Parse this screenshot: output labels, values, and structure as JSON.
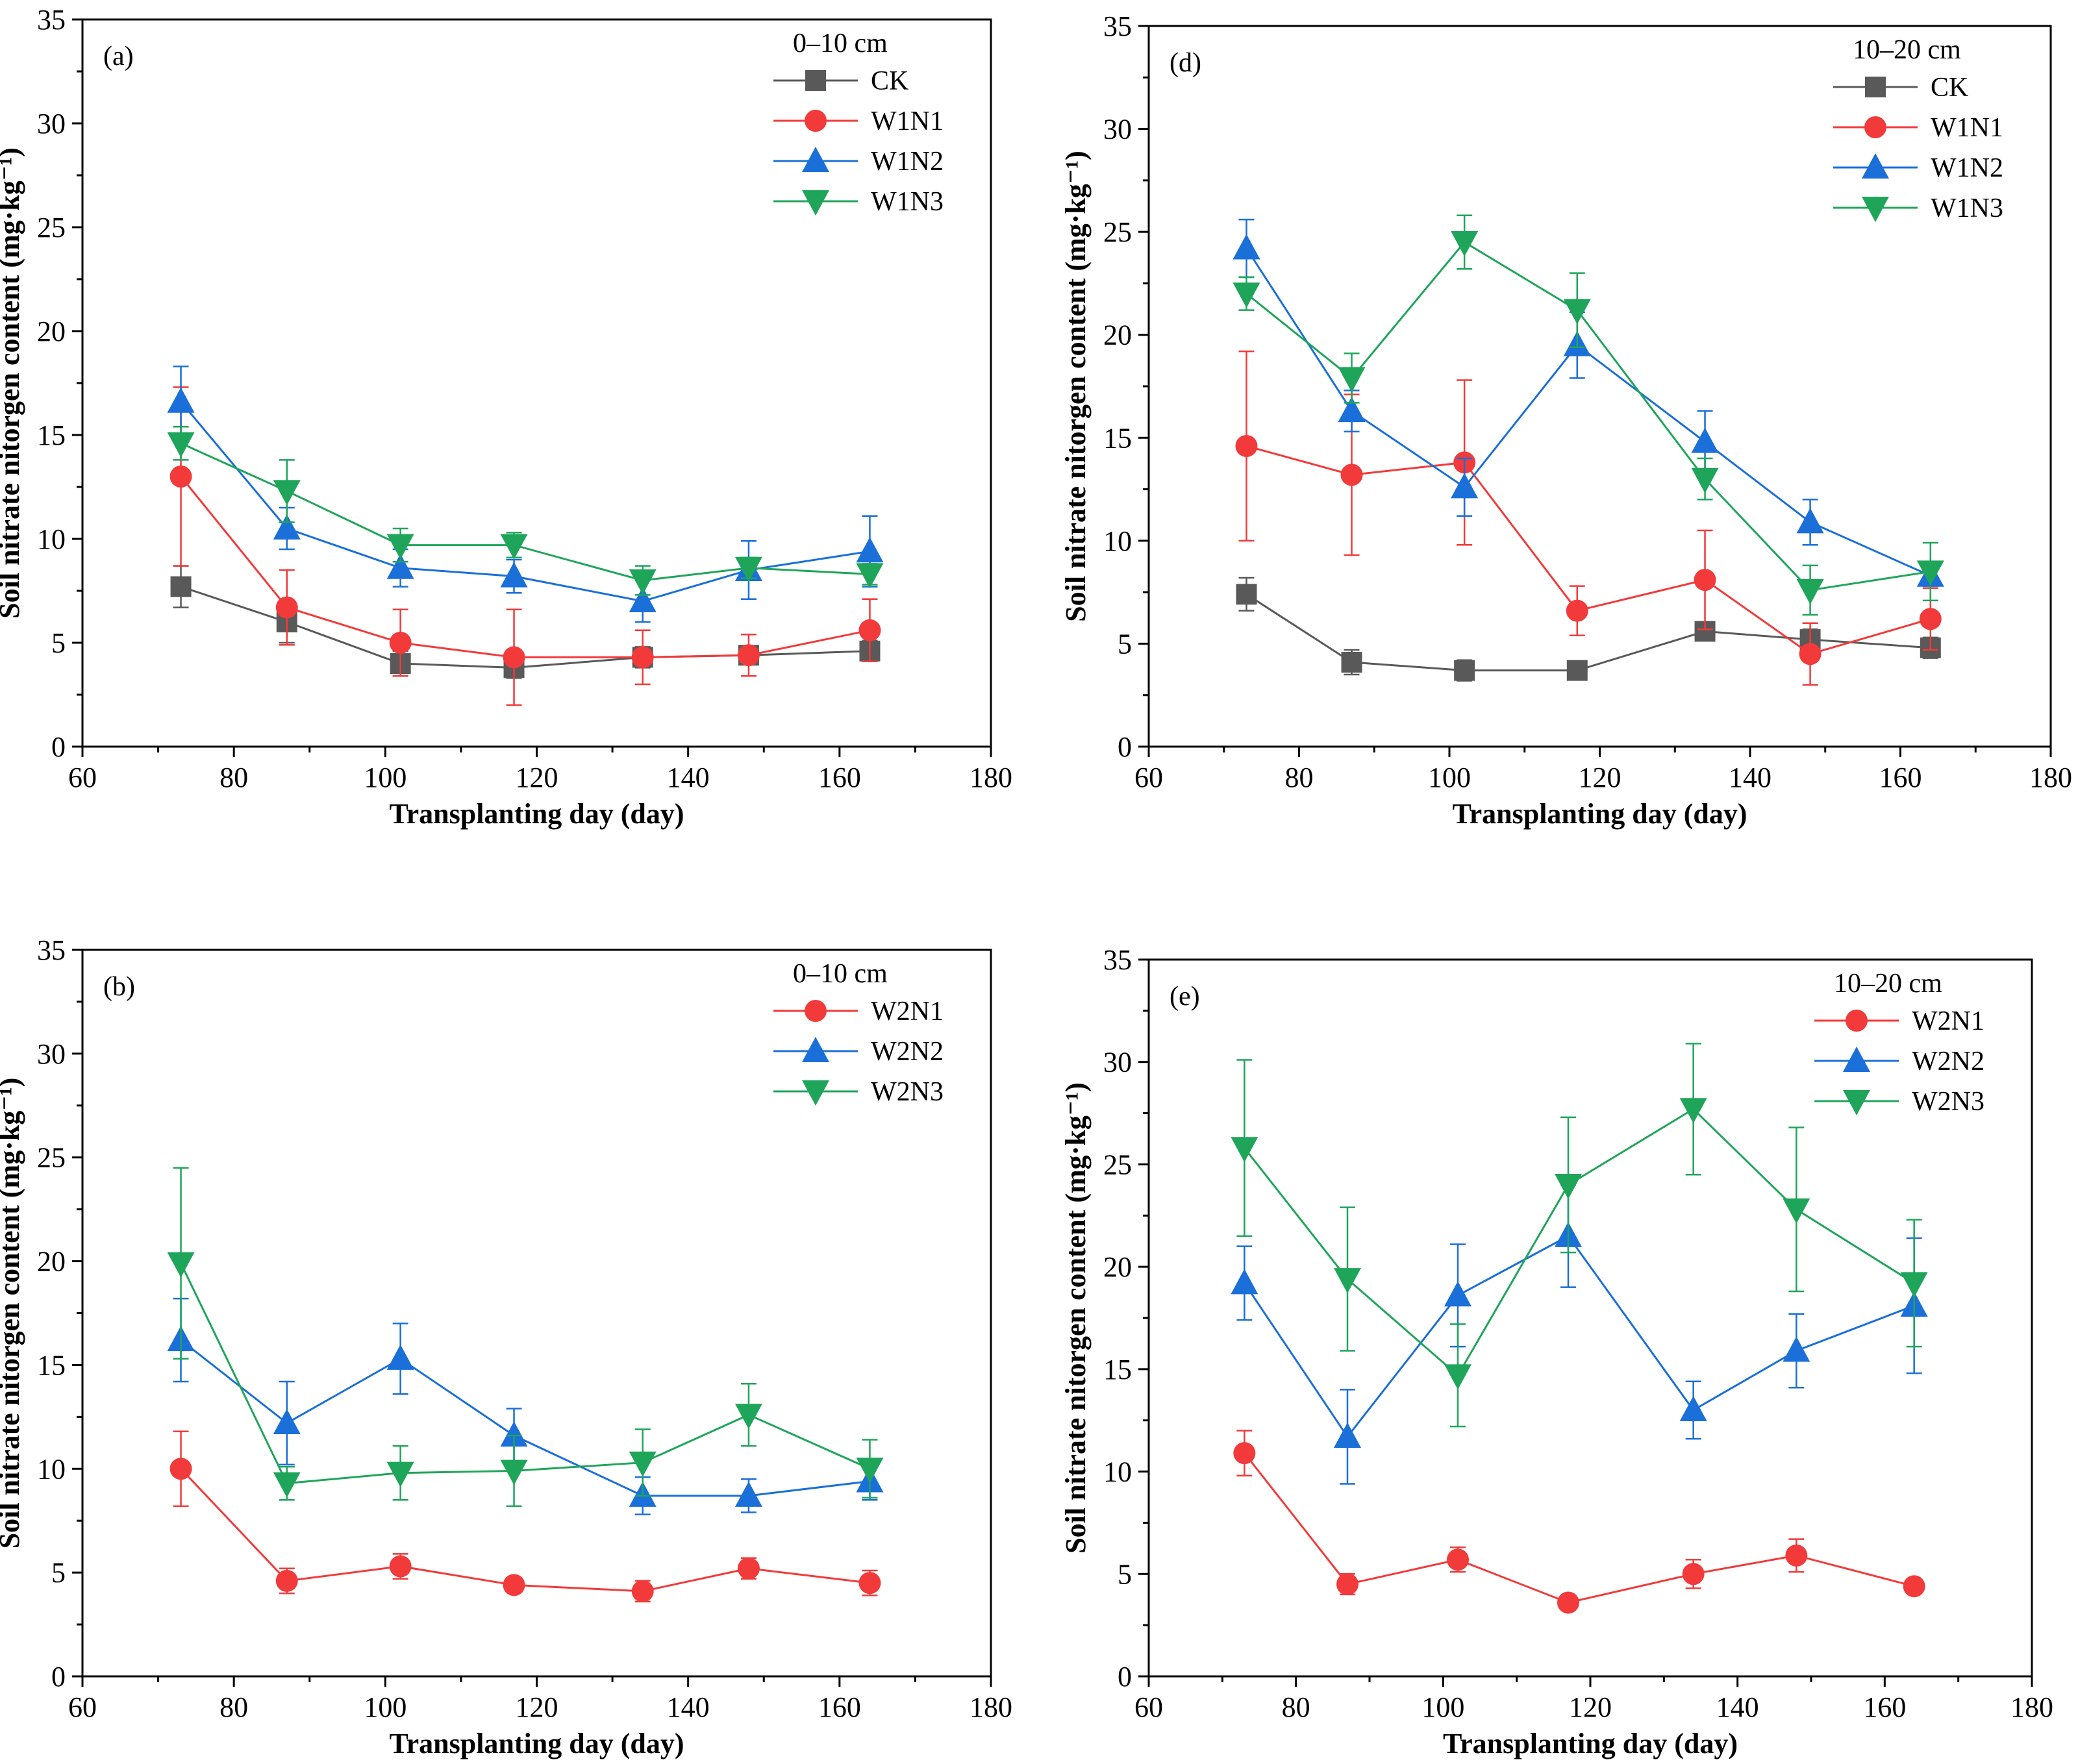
{
  "figure": {
    "colors": {
      "CK": "#595959",
      "N1": "#f23a3a",
      "N2": "#1a6fd9",
      "N3": "#1fa55a",
      "axis": "#000000"
    }
  },
  "chart_data": [
    {
      "id": "a",
      "type": "line",
      "panel_label": "(a)",
      "legend_title": "0–10 cm",
      "xlabel": "Transplanting day (day)",
      "ylabel": "Soil nitrate nitorgen content (mg·kg⁻¹)",
      "xlim": [
        60,
        180
      ],
      "ylim": [
        0,
        35
      ],
      "xticks": [
        60,
        80,
        100,
        120,
        140,
        160,
        180
      ],
      "yticks": [
        0,
        5,
        10,
        15,
        20,
        25,
        30,
        35
      ],
      "x": [
        73,
        87,
        102,
        117,
        134,
        148,
        164
      ],
      "series": [
        {
          "name": "CK",
          "marker": "square",
          "color_key": "CK",
          "values": [
            7.7,
            6.0,
            4.0,
            3.8,
            4.3,
            4.4,
            4.6
          ],
          "errors": [
            1.0,
            1.0,
            0.6,
            0.5,
            0.5,
            0.4,
            0.5
          ]
        },
        {
          "name": "W1N1",
          "marker": "circle",
          "color_key": "N1",
          "values": [
            13.0,
            6.7,
            5.0,
            4.3,
            4.3,
            4.4,
            5.6
          ],
          "errors": [
            4.3,
            1.8,
            1.6,
            2.3,
            1.3,
            1.0,
            1.5
          ]
        },
        {
          "name": "W1N2",
          "marker": "triangle-up",
          "color_key": "N2",
          "values": [
            16.6,
            10.5,
            8.6,
            8.2,
            7.0,
            8.5,
            9.4
          ],
          "errors": [
            1.7,
            1.0,
            0.9,
            0.8,
            1.0,
            1.4,
            1.7
          ]
        },
        {
          "name": "W1N3",
          "marker": "triangle-down",
          "color_key": "N3",
          "values": [
            14.6,
            12.3,
            9.7,
            9.7,
            8.0,
            8.6,
            8.3
          ],
          "errors": [
            0.8,
            1.5,
            0.8,
            0.6,
            0.7,
            0.5,
            0.5
          ]
        }
      ]
    },
    {
      "id": "d",
      "type": "line",
      "panel_label": "(d)",
      "legend_title": "10–20 cm",
      "xlabel": "Transplanting day (day)",
      "ylabel": "Soil nitrate nitorgen content (mg·kg⁻¹)",
      "xlim": [
        60,
        180
      ],
      "ylim": [
        0,
        35
      ],
      "xticks": [
        60,
        80,
        100,
        120,
        140,
        160,
        180
      ],
      "yticks": [
        0,
        5,
        10,
        15,
        20,
        25,
        30,
        35
      ],
      "x": [
        73,
        87,
        102,
        117,
        134,
        148,
        164
      ],
      "series": [
        {
          "name": "CK",
          "marker": "square",
          "color_key": "CK",
          "values": [
            7.4,
            4.1,
            3.7,
            3.7,
            5.6,
            5.2,
            4.8
          ],
          "errors": [
            0.8,
            0.6,
            0.5,
            0.3,
            0.4,
            0.5,
            0.5
          ]
        },
        {
          "name": "W1N1",
          "marker": "circle",
          "color_key": "N1",
          "values": [
            14.6,
            13.2,
            13.8,
            6.6,
            8.1,
            4.5,
            6.2
          ],
          "errors": [
            4.6,
            3.9,
            4.0,
            1.2,
            2.4,
            1.5,
            1.5
          ]
        },
        {
          "name": "W1N2",
          "marker": "triangle-up",
          "color_key": "N2",
          "values": [
            24.2,
            16.3,
            12.6,
            19.5,
            14.8,
            10.9,
            8.3
          ],
          "errors": [
            1.4,
            1.0,
            1.4,
            1.6,
            1.5,
            1.1,
            0.5
          ]
        },
        {
          "name": "W1N3",
          "marker": "triangle-down",
          "color_key": "N3",
          "values": [
            22.0,
            17.9,
            24.5,
            21.2,
            13.0,
            7.6,
            8.5
          ],
          "errors": [
            0.8,
            1.2,
            1.3,
            1.8,
            1.0,
            1.2,
            1.4
          ]
        }
      ]
    },
    {
      "id": "b",
      "type": "line",
      "panel_label": "(b)",
      "legend_title": "0–10 cm",
      "xlabel": "Transplanting day (day)",
      "ylabel": "Soil nitrate nitorgen content (mg·kg⁻¹)",
      "xlim": [
        60,
        180
      ],
      "ylim": [
        0,
        35
      ],
      "xticks": [
        60,
        80,
        100,
        120,
        140,
        160,
        180
      ],
      "yticks": [
        0,
        5,
        10,
        15,
        20,
        25,
        30,
        35
      ],
      "x": [
        73,
        87,
        102,
        117,
        134,
        148,
        164
      ],
      "series": [
        {
          "name": "W2N1",
          "marker": "circle",
          "color_key": "N1",
          "values": [
            10.0,
            4.6,
            5.3,
            4.4,
            4.1,
            5.2,
            4.5
          ],
          "errors": [
            1.8,
            0.6,
            0.6,
            0.3,
            0.5,
            0.5,
            0.6
          ]
        },
        {
          "name": "W2N2",
          "marker": "triangle-up",
          "color_key": "N2",
          "values": [
            16.2,
            12.2,
            15.3,
            11.6,
            8.7,
            8.7,
            9.4
          ],
          "errors": [
            2.0,
            2.0,
            1.7,
            1.3,
            0.9,
            0.8,
            0.9
          ]
        },
        {
          "name": "W2N3",
          "marker": "triangle-down",
          "color_key": "N3",
          "values": [
            19.9,
            9.3,
            9.8,
            9.9,
            10.3,
            12.6,
            10.0
          ],
          "errors": [
            4.6,
            0.8,
            1.3,
            1.7,
            1.6,
            1.5,
            1.4
          ]
        }
      ]
    },
    {
      "id": "e",
      "type": "line",
      "panel_label": "(e)",
      "legend_title": "10–20 cm",
      "xlabel": "Transplanting day (day)",
      "ylabel": "Soil nitrate nitorgen content (mg·kg⁻¹)",
      "xlim": [
        60,
        180
      ],
      "ylim": [
        0,
        35
      ],
      "xticks": [
        60,
        80,
        100,
        120,
        140,
        160,
        180
      ],
      "yticks": [
        0,
        5,
        10,
        15,
        20,
        25,
        30,
        35
      ],
      "x": [
        73,
        87,
        102,
        117,
        134,
        148,
        164
      ],
      "series": [
        {
          "name": "W2N1",
          "marker": "circle",
          "color_key": "N1",
          "values": [
            10.9,
            4.5,
            5.7,
            3.6,
            5.0,
            5.9,
            4.4
          ],
          "errors": [
            1.1,
            0.5,
            0.6,
            0.3,
            0.7,
            0.8,
            0.3
          ]
        },
        {
          "name": "W2N2",
          "marker": "triangle-up",
          "color_key": "N2",
          "values": [
            19.2,
            11.7,
            18.6,
            21.5,
            13.0,
            15.9,
            18.1
          ],
          "errors": [
            1.8,
            2.3,
            2.5,
            2.5,
            1.4,
            1.8,
            3.3
          ]
        },
        {
          "name": "W2N3",
          "marker": "triangle-down",
          "color_key": "N3",
          "values": [
            25.8,
            19.4,
            14.7,
            24.0,
            27.7,
            22.8,
            19.2
          ],
          "errors": [
            4.3,
            3.5,
            2.5,
            3.3,
            3.2,
            4.0,
            3.1
          ]
        }
      ]
    }
  ]
}
